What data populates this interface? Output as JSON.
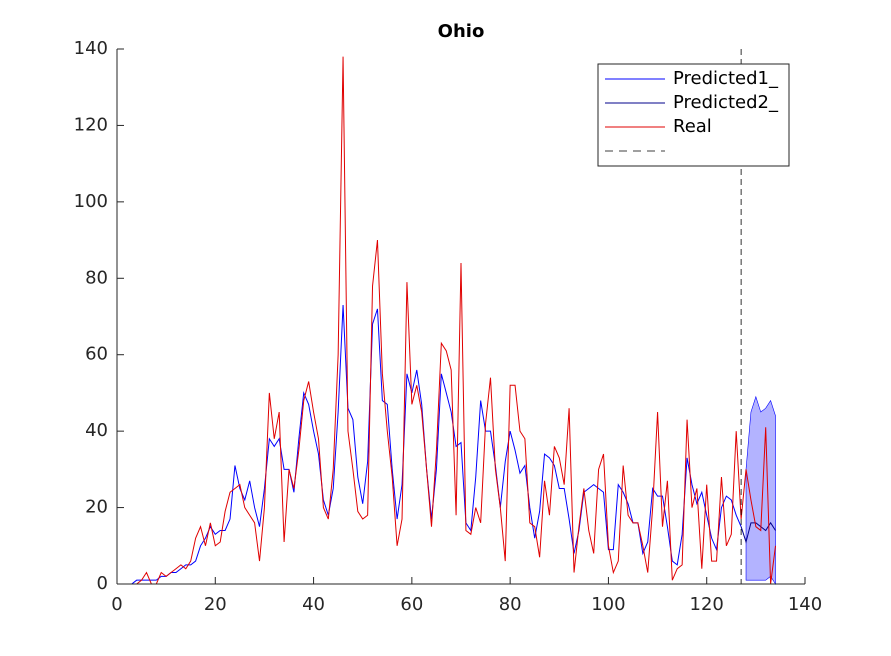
{
  "chart_data": {
    "type": "line",
    "title": "Ohio",
    "xlim": [
      0,
      140
    ],
    "xticks": [
      0,
      20,
      40,
      60,
      80,
      100,
      120,
      140
    ],
    "ylim": [
      0,
      140
    ],
    "yticks": [
      0,
      20,
      40,
      60,
      80,
      100,
      120,
      140
    ],
    "legend": "upper right",
    "series": [
      {
        "name": "Predicted1_",
        "color": "#0000ff",
        "x": [
          0,
          1,
          2,
          3,
          4,
          5,
          6,
          7,
          8,
          9,
          10,
          11,
          12,
          13,
          14,
          15,
          16,
          17,
          18,
          19,
          20,
          21,
          22,
          23,
          24,
          25,
          26,
          27,
          28,
          29,
          30,
          31,
          32,
          33,
          34,
          35,
          36,
          37,
          38,
          39,
          40,
          41,
          42,
          43,
          44,
          45,
          46,
          47,
          48,
          49,
          50,
          51,
          52,
          53,
          54,
          55,
          56,
          57,
          58,
          59,
          60,
          61,
          62,
          63,
          64,
          65,
          66,
          67,
          68,
          69,
          70,
          71,
          72,
          73,
          74,
          75,
          76,
          77,
          78,
          79,
          80,
          81,
          82,
          83,
          84,
          85,
          86,
          87,
          88,
          89,
          90,
          91,
          92,
          93,
          94,
          95,
          96,
          97,
          98,
          99,
          100,
          101,
          102,
          103,
          104,
          105,
          106,
          107,
          108,
          109,
          110,
          111,
          112,
          113,
          114,
          115,
          116,
          117,
          118,
          119,
          120,
          121,
          122,
          123,
          124,
          125,
          126,
          127
        ],
        "values": [
          0,
          0,
          0,
          0,
          1,
          1,
          1,
          1,
          1,
          2,
          2,
          3,
          3,
          4,
          5,
          5,
          6,
          10,
          12,
          15,
          13,
          14,
          14,
          17,
          31,
          25,
          22,
          27,
          20,
          15,
          25,
          38,
          36,
          38,
          30,
          30,
          24,
          38,
          50,
          47,
          40,
          34,
          22,
          18,
          25,
          45,
          73,
          46,
          43,
          28,
          21,
          32,
          68,
          72,
          48,
          47,
          30,
          17,
          26,
          55,
          50,
          56,
          47,
          30,
          17,
          30,
          55,
          50,
          45,
          36,
          37,
          16,
          14,
          28,
          48,
          40,
          40,
          31,
          20,
          32,
          40,
          35,
          29,
          31,
          20,
          12,
          19,
          34,
          33,
          31,
          25,
          25,
          17,
          8,
          14,
          24,
          25,
          26,
          25,
          24,
          9,
          9,
          26,
          24,
          21,
          16,
          16,
          8,
          11,
          25,
          23,
          23,
          15,
          6,
          5,
          13,
          33,
          26,
          21,
          24,
          18,
          12,
          9,
          20,
          23,
          22,
          18,
          15
        ]
      },
      {
        "name": "Predicted2_",
        "color": "#00008b",
        "x": [
          127,
          128,
          129,
          130,
          131,
          132,
          133,
          134
        ],
        "values": [
          15,
          11,
          16,
          16,
          15,
          14,
          16,
          14
        ]
      },
      {
        "name": "Real",
        "color": "#e00000",
        "x": [
          0,
          1,
          2,
          3,
          4,
          5,
          6,
          7,
          8,
          9,
          10,
          11,
          12,
          13,
          14,
          15,
          16,
          17,
          18,
          19,
          20,
          21,
          22,
          23,
          24,
          25,
          26,
          27,
          28,
          29,
          30,
          31,
          32,
          33,
          34,
          35,
          36,
          37,
          38,
          39,
          40,
          41,
          42,
          43,
          44,
          45,
          46,
          47,
          48,
          49,
          50,
          51,
          52,
          53,
          54,
          55,
          56,
          57,
          58,
          59,
          60,
          61,
          62,
          63,
          64,
          65,
          66,
          67,
          68,
          69,
          70,
          71,
          72,
          73,
          74,
          75,
          76,
          77,
          78,
          79,
          80,
          81,
          82,
          83,
          84,
          85,
          86,
          87,
          88,
          89,
          90,
          91,
          92,
          93,
          94,
          95,
          96,
          97,
          98,
          99,
          100,
          101,
          102,
          103,
          104,
          105,
          106,
          107,
          108,
          109,
          110,
          111,
          112,
          113,
          114,
          115,
          116,
          117,
          118,
          119,
          120,
          121,
          122,
          123,
          124,
          125,
          126,
          127,
          128,
          129,
          130,
          131,
          132,
          133,
          134
        ],
        "values": [
          0,
          0,
          0,
          0,
          0,
          1,
          3,
          0,
          0,
          3,
          2,
          3,
          4,
          5,
          4,
          6,
          12,
          15,
          10,
          16,
          10,
          11,
          19,
          24,
          25,
          26,
          20,
          18,
          16,
          6,
          20,
          50,
          38,
          45,
          11,
          30,
          25,
          35,
          48,
          53,
          45,
          38,
          20,
          17,
          30,
          60,
          138,
          40,
          30,
          19,
          17,
          18,
          78,
          90,
          55,
          40,
          28,
          10,
          17,
          79,
          47,
          52,
          45,
          30,
          15,
          35,
          63,
          61,
          56,
          18,
          84,
          14,
          13,
          20,
          16,
          42,
          54,
          30,
          20,
          6,
          52,
          52,
          40,
          38,
          16,
          15,
          7,
          27,
          18,
          36,
          33,
          26,
          46,
          3,
          15,
          25,
          14,
          8,
          30,
          34,
          10,
          3,
          6,
          31,
          18,
          16,
          16,
          10,
          3,
          20,
          45,
          15,
          27,
          1,
          4,
          5,
          43,
          20,
          25,
          4,
          26,
          6,
          6,
          28,
          10,
          13,
          40,
          17,
          30,
          22,
          15,
          14,
          41,
          0,
          10
        ]
      }
    ],
    "band": {
      "color": "#b3b3ff",
      "x": [
        128,
        129,
        130,
        131,
        132,
        133,
        134
      ],
      "lower": [
        1,
        1,
        1,
        1,
        1,
        2,
        0
      ],
      "upper": [
        30,
        45,
        49,
        45,
        46,
        48,
        44
      ]
    },
    "vline": {
      "x": 127,
      "color": "#000000",
      "style": "dashed"
    }
  }
}
